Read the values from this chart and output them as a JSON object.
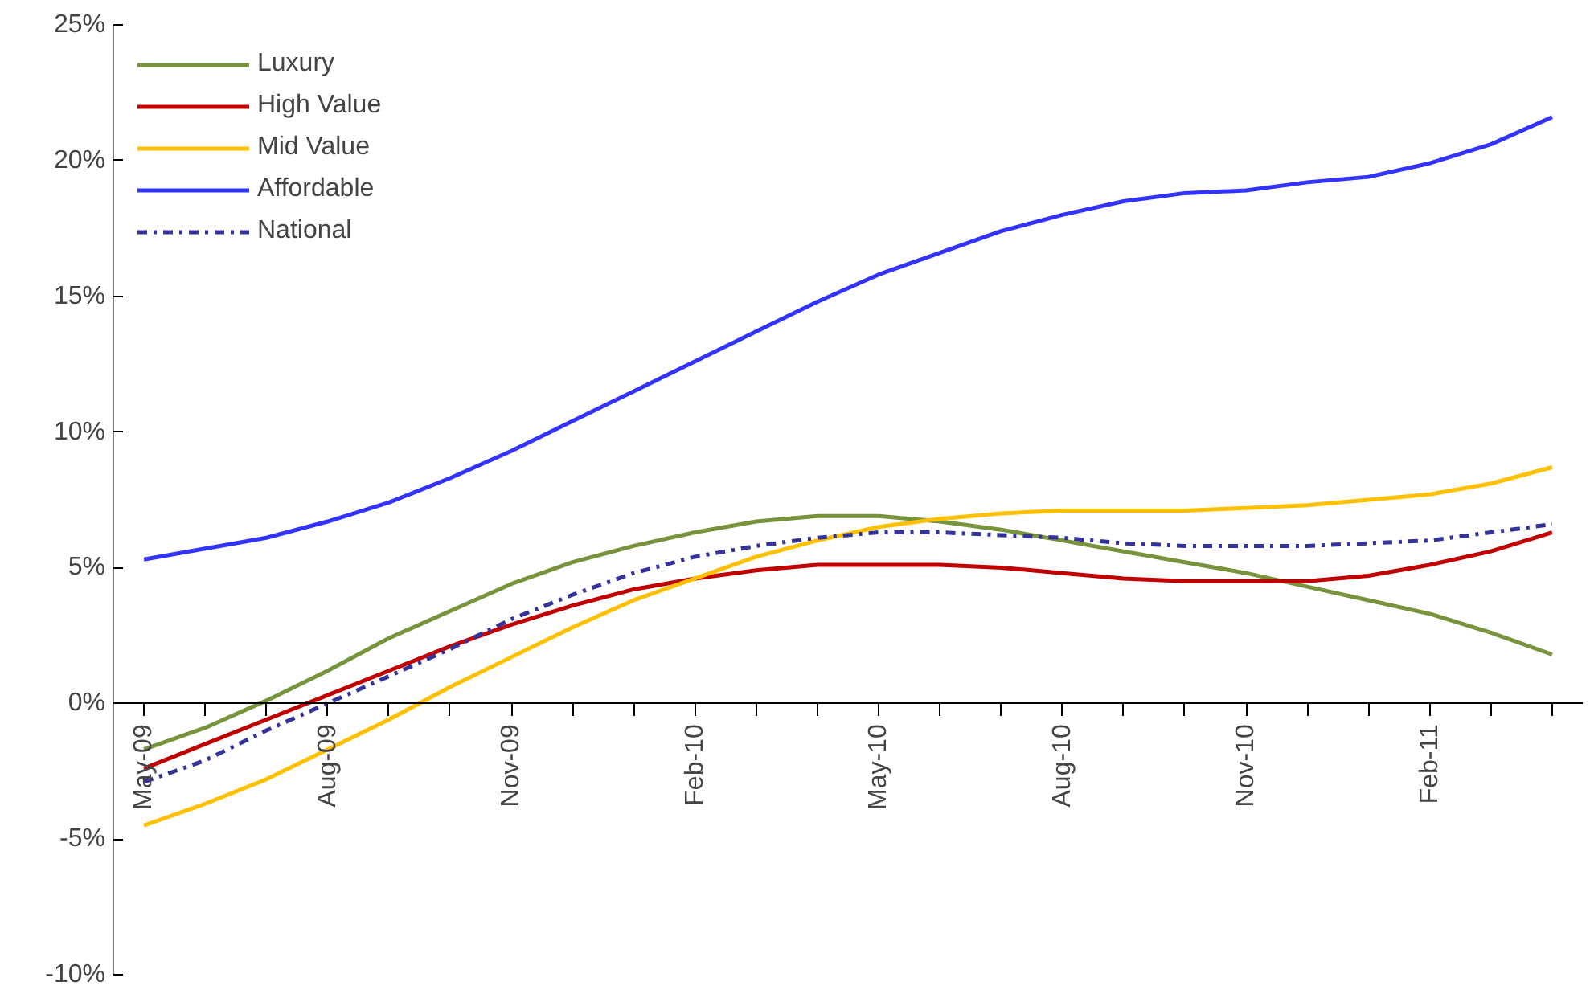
{
  "chart_data": {
    "type": "line",
    "categories": [
      "May-09",
      null,
      null,
      "Aug-09",
      null,
      null,
      "Nov-09",
      null,
      null,
      "Feb-10",
      null,
      null,
      "May-10",
      null,
      null,
      "Aug-10",
      null,
      null,
      "Nov-10",
      null,
      null,
      "Feb-11",
      null,
      null
    ],
    "series": [
      {
        "name": "Luxury",
        "color": "#77933c",
        "line_style": "solid",
        "values": [
          -1.7,
          -0.9,
          0.1,
          1.2,
          2.4,
          3.4,
          4.4,
          5.2,
          5.8,
          6.3,
          6.7,
          6.9,
          6.9,
          6.7,
          6.4,
          6.0,
          5.6,
          5.2,
          4.8,
          4.3,
          3.8,
          3.3,
          2.6,
          1.8
        ]
      },
      {
        "name": "High Value",
        "color": "#c00000",
        "line_style": "solid",
        "values": [
          -2.4,
          -1.5,
          -0.6,
          0.3,
          1.2,
          2.1,
          2.9,
          3.6,
          4.2,
          4.6,
          4.9,
          5.1,
          5.1,
          5.1,
          5.0,
          4.8,
          4.6,
          4.5,
          4.5,
          4.5,
          4.7,
          5.1,
          5.6,
          6.3
        ]
      },
      {
        "name": "Mid Value",
        "color": "#ffc000",
        "line_style": "solid",
        "values": [
          -4.5,
          -3.7,
          -2.8,
          -1.7,
          -0.6,
          0.6,
          1.7,
          2.8,
          3.8,
          4.6,
          5.4,
          6.0,
          6.5,
          6.8,
          7.0,
          7.1,
          7.1,
          7.1,
          7.2,
          7.3,
          7.5,
          7.7,
          8.1,
          8.7
        ]
      },
      {
        "name": "Affordable",
        "color": "#3333ff",
        "line_style": "solid",
        "values": [
          5.3,
          5.7,
          6.1,
          6.7,
          7.4,
          8.3,
          9.3,
          10.4,
          11.5,
          12.6,
          13.7,
          14.8,
          15.8,
          16.6,
          17.4,
          18.0,
          18.5,
          18.8,
          18.9,
          19.2,
          19.4,
          19.9,
          20.6,
          21.6
        ]
      },
      {
        "name": "National",
        "color": "#333399",
        "line_style": "dashdot",
        "values": [
          -2.9,
          -2.1,
          -1.0,
          0.0,
          1.0,
          2.0,
          3.1,
          4.0,
          4.8,
          5.4,
          5.8,
          6.1,
          6.3,
          6.3,
          6.2,
          6.1,
          5.9,
          5.8,
          5.8,
          5.8,
          5.9,
          6.0,
          6.3,
          6.6
        ]
      }
    ],
    "ylim": [
      -10,
      25
    ],
    "yticks": [
      {
        "value": -10,
        "label": "-10%"
      },
      {
        "value": -5,
        "label": "-5%"
      },
      {
        "value": 0,
        "label": "0%"
      },
      {
        "value": 5,
        "label": "5%"
      },
      {
        "value": 10,
        "label": "10%"
      },
      {
        "value": 15,
        "label": "15%"
      },
      {
        "value": 20,
        "label": "20%"
      },
      {
        "value": 25,
        "label": "25%"
      }
    ],
    "grid": false,
    "legend": "top left"
  }
}
